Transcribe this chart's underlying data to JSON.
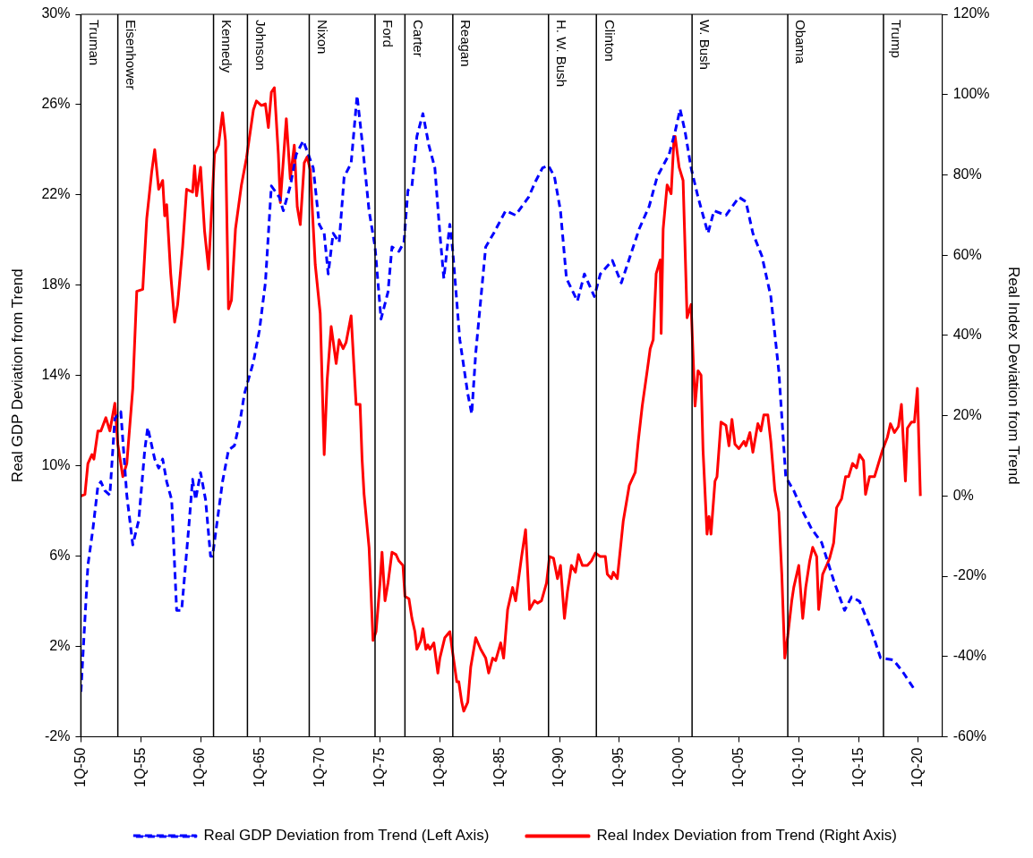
{
  "chart_data": {
    "type": "line",
    "ylabel": "Real GDP Deviation from Trend",
    "y2label": "Real Index Deviation from Trend",
    "xlim": [
      "1950-01",
      "2022-01"
    ],
    "xticks": [
      {
        "value": "1950-01",
        "label": "1Q-50"
      },
      {
        "value": "1955-01",
        "label": "1Q-55"
      },
      {
        "value": "1960-01",
        "label": "1Q-60"
      },
      {
        "value": "1965-01",
        "label": "1Q-65"
      },
      {
        "value": "1970-01",
        "label": "1Q-70"
      },
      {
        "value": "1975-01",
        "label": "1Q-75"
      },
      {
        "value": "1980-01",
        "label": "1Q-80"
      },
      {
        "value": "1985-01",
        "label": "1Q-85"
      },
      {
        "value": "1990-01",
        "label": "1Q-90"
      },
      {
        "value": "1995-01",
        "label": "1Q-95"
      },
      {
        "value": "2000-01",
        "label": "1Q-00"
      },
      {
        "value": "2005-01",
        "label": "1Q-05"
      },
      {
        "value": "2010-01",
        "label": "1Q-10"
      },
      {
        "value": "2015-01",
        "label": "1Q-15"
      },
      {
        "value": "2020-01",
        "label": "1Q-20"
      }
    ],
    "ylim": [
      -2,
      30
    ],
    "yticks": [
      {
        "value": -2,
        "label": "-2%"
      },
      {
        "value": 2,
        "label": "2%"
      },
      {
        "value": 6,
        "label": "6%"
      },
      {
        "value": 10,
        "label": "10%"
      },
      {
        "value": 14,
        "label": "14%"
      },
      {
        "value": 18,
        "label": "18%"
      },
      {
        "value": 22,
        "label": "22%"
      },
      {
        "value": 26,
        "label": "26%"
      },
      {
        "value": 30,
        "label": "30%"
      }
    ],
    "y2lim": [
      -60,
      120
    ],
    "y2ticks": [
      {
        "value": -60,
        "label": "-60%"
      },
      {
        "value": -40,
        "label": "-40%"
      },
      {
        "value": -20,
        "label": "-20%"
      },
      {
        "value": 0,
        "label": "0%"
      },
      {
        "value": 20,
        "label": "20%"
      },
      {
        "value": 40,
        "label": "40%"
      },
      {
        "value": 60,
        "label": "60%"
      },
      {
        "value": 80,
        "label": "80%"
      },
      {
        "value": 100,
        "label": "100%"
      },
      {
        "value": 120,
        "label": "120%"
      }
    ],
    "grid": false,
    "legend": "bottom",
    "ref_lines": [
      {
        "axis": "x",
        "value": "1950-01",
        "label": "Truman",
        "color": "#000000"
      },
      {
        "axis": "x",
        "value": "1953-02",
        "label": "Eisenhower",
        "color": "#000000"
      },
      {
        "axis": "x",
        "value": "1961-02",
        "label": "Kennedy",
        "color": "#000000"
      },
      {
        "axis": "x",
        "value": "1963-12",
        "label": "Johnson",
        "color": "#000000"
      },
      {
        "axis": "x",
        "value": "1969-02",
        "label": "Nixon",
        "color": "#000000"
      },
      {
        "axis": "x",
        "value": "1974-08",
        "label": "Ford",
        "color": "#000000"
      },
      {
        "axis": "x",
        "value": "1977-02",
        "label": "Carter",
        "color": "#000000"
      },
      {
        "axis": "x",
        "value": "1981-02",
        "label": "Reagan",
        "color": "#000000"
      },
      {
        "axis": "x",
        "value": "1989-02",
        "label": "H. W. Bush",
        "color": "#000000"
      },
      {
        "axis": "x",
        "value": "1993-02",
        "label": "Clinton",
        "color": "#000000"
      },
      {
        "axis": "x",
        "value": "2001-02",
        "label": "W. Bush",
        "color": "#000000"
      },
      {
        "axis": "x",
        "value": "2009-02",
        "label": "Obama",
        "color": "#000000"
      },
      {
        "axis": "x",
        "value": "2017-02",
        "label": "Trump",
        "color": "#000000"
      }
    ],
    "series": [
      {
        "name": "Real GDP Deviation from Trend (Left Axis)",
        "color": "#0000ff",
        "line_style": "dashed",
        "axis": "y",
        "x": [
          "1950-01",
          "1950-08",
          "1951-01",
          "1951-06",
          "1951-09",
          "1952-01",
          "1952-06",
          "1952-11",
          "1953-05",
          "1953-11",
          "1954-05",
          "1954-11",
          "1955-05",
          "1955-08",
          "1956-03",
          "1956-07",
          "1956-11",
          "1957-03",
          "1957-08",
          "1958-01",
          "1958-06",
          "1959-01",
          "1959-05",
          "1959-08",
          "1960-01",
          "1960-06",
          "1960-11",
          "1961-01",
          "1961-11",
          "1962-05",
          "1962-11",
          "1963-05",
          "1963-09",
          "1964-06",
          "1964-12",
          "1965-06",
          "1965-12",
          "1966-08",
          "1966-12",
          "1967-07",
          "1968-01",
          "1968-08",
          "1969-01",
          "1969-06",
          "1969-12",
          "1970-05",
          "1970-09",
          "1971-02",
          "1971-08",
          "1972-01",
          "1972-08",
          "1973-02",
          "1973-07",
          "1974-02",
          "1974-08",
          "1975-02",
          "1975-09",
          "1976-01",
          "1976-08",
          "1977-01",
          "1977-05",
          "1977-09",
          "1978-02",
          "1978-08",
          "1979-02",
          "1979-08",
          "1980-01",
          "1980-05",
          "1980-11",
          "1981-02",
          "1981-09",
          "1982-05",
          "1982-09",
          "1983-01",
          "1983-11",
          "1984-07",
          "1985-07",
          "1986-05",
          "1987-06",
          "1988-01",
          "1988-08",
          "1989-02",
          "1989-08",
          "1990-02",
          "1990-08",
          "1991-07",
          "1992-02",
          "1992-12",
          "1993-06",
          "1994-06",
          "1995-03",
          "1995-12",
          "1996-09",
          "1997-07",
          "1998-03",
          "1999-03",
          "1999-09",
          "2000-02",
          "2000-07",
          "2001-01",
          "2001-08",
          "2002-06",
          "2002-12",
          "2003-12",
          "2005-01",
          "2005-08",
          "2006-03",
          "2006-12",
          "2007-09",
          "2008-05",
          "2008-12",
          "2009-08",
          "2010-06",
          "2011-02",
          "2011-12",
          "2013-01",
          "2013-11",
          "2014-06",
          "2015-02",
          "2016-02",
          "2016-11",
          "2017-12",
          "2018-09",
          "2019-09"
        ],
        "values": [
          0.0,
          5.6,
          7.2,
          9.1,
          9.3,
          8.9,
          8.7,
          12.1,
          12.4,
          8.7,
          6.5,
          7.6,
          10.7,
          11.7,
          10.3,
          9.9,
          10.3,
          9.3,
          8.5,
          3.6,
          3.6,
          7.2,
          9.4,
          8.5,
          9.7,
          8.5,
          6.0,
          6.0,
          9.3,
          10.7,
          10.9,
          12.1,
          13.2,
          14.6,
          16.0,
          18.1,
          22.4,
          21.9,
          21.3,
          22.4,
          23.8,
          24.4,
          23.8,
          23.2,
          20.7,
          20.3,
          18.5,
          20.3,
          19.9,
          22.8,
          23.4,
          26.4,
          24.4,
          21.3,
          19.7,
          16.5,
          17.7,
          19.7,
          19.5,
          19.9,
          22.2,
          22.4,
          24.6,
          25.6,
          24.2,
          23.2,
          20.3,
          18.3,
          20.7,
          19.5,
          15.6,
          13.2,
          12.3,
          15.0,
          19.7,
          20.3,
          21.3,
          21.1,
          21.9,
          22.6,
          23.2,
          23.3,
          22.8,
          21.3,
          18.3,
          17.3,
          18.5,
          17.5,
          18.5,
          19.1,
          18.1,
          19.3,
          20.5,
          21.5,
          22.8,
          23.8,
          24.8,
          25.8,
          24.8,
          23.2,
          21.9,
          20.3,
          21.3,
          21.1,
          21.9,
          21.7,
          20.3,
          19.3,
          17.5,
          14.2,
          9.5,
          8.9,
          7.9,
          7.2,
          6.6,
          4.8,
          3.6,
          4.2,
          4.0,
          2.7,
          1.5,
          1.4,
          0.9,
          0.1
        ]
      },
      {
        "name": "Real Index Deviation from Trend (Right Axis)",
        "color": "#ff0000",
        "line_style": "solid",
        "axis": "y2",
        "x": [
          "1950-01",
          "1950-05",
          "1950-08",
          "1950-12",
          "1951-02",
          "1951-06",
          "1951-09",
          "1952-02",
          "1952-06",
          "1952-11",
          "1953-02",
          "1953-07",
          "1953-11",
          "1954-05",
          "1954-09",
          "1955-03",
          "1955-07",
          "1955-12",
          "1956-03",
          "1956-07",
          "1956-11",
          "1957-01",
          "1957-03",
          "1957-07",
          "1957-11",
          "1958-02",
          "1958-07",
          "1958-11",
          "1959-05",
          "1959-07",
          "1959-09",
          "1960-01",
          "1960-05",
          "1960-09",
          "1961-03",
          "1961-07",
          "1961-11",
          "1962-02",
          "1962-05",
          "1962-08",
          "1962-12",
          "1963-06",
          "1963-11",
          "1964-06",
          "1964-09",
          "1965-02",
          "1965-06",
          "1965-09",
          "1965-12",
          "1966-03",
          "1966-07",
          "1966-09",
          "1967-03",
          "1967-07",
          "1967-11",
          "1968-02",
          "1968-05",
          "1968-09",
          "1968-12",
          "1969-03",
          "1969-08",
          "1970-01",
          "1970-05",
          "1970-08",
          "1970-12",
          "1971-05",
          "1971-08",
          "1971-12",
          "1972-03",
          "1972-08",
          "1973-01",
          "1973-05",
          "1973-07",
          "1973-09",
          "1974-02",
          "1974-06",
          "1974-09",
          "1975-01",
          "1975-03",
          "1975-06",
          "1975-09",
          "1976-01",
          "1976-05",
          "1976-08",
          "1976-12",
          "1977-02",
          "1977-06",
          "1977-09",
          "1977-12",
          "1978-02",
          "1978-06",
          "1978-08",
          "1978-11",
          "1979-01",
          "1979-03",
          "1979-07",
          "1979-11",
          "1980-01",
          "1980-06",
          "1980-11",
          "1981-02",
          "1981-06",
          "1981-08",
          "1981-11",
          "1982-01",
          "1982-05",
          "1982-08",
          "1983-01",
          "1983-06",
          "1983-11",
          "1984-02",
          "1984-06",
          "1984-09",
          "1985-02",
          "1985-05",
          "1985-09",
          "1986-02",
          "1986-05",
          "1986-11",
          "1987-03",
          "1987-07",
          "1987-12",
          "1988-03",
          "1988-07",
          "1988-12",
          "1989-03",
          "1989-07",
          "1989-11",
          "1990-02",
          "1990-06",
          "1990-09",
          "1991-01",
          "1991-05",
          "1991-08",
          "1991-12",
          "1992-05",
          "1992-09",
          "1993-01",
          "1993-06",
          "1993-11",
          "1994-01",
          "1994-05",
          "1994-07",
          "1994-11",
          "1995-05",
          "1995-11",
          "1996-05",
          "1996-08",
          "1996-12",
          "1997-05",
          "1997-08",
          "1997-11",
          "1998-02",
          "1998-06",
          "1998-07",
          "1998-09",
          "1999-01",
          "1999-05",
          "1999-08",
          "1999-09",
          "2000-01",
          "2000-05",
          "2000-09",
          "2001-01",
          "2001-05",
          "2001-08",
          "2001-11",
          "2002-01",
          "2002-05",
          "2002-07",
          "2002-09",
          "2003-01",
          "2003-03",
          "2003-07",
          "2003-12",
          "2004-03",
          "2004-06",
          "2004-09",
          "2005-01",
          "2005-06",
          "2005-08",
          "2005-12",
          "2006-03",
          "2006-08",
          "2006-11",
          "2007-02",
          "2007-06",
          "2007-09",
          "2008-01",
          "2008-05",
          "2008-08",
          "2008-11",
          "2009-02",
          "2009-06",
          "2009-08",
          "2010-01",
          "2010-05",
          "2010-08",
          "2010-12",
          "2011-03",
          "2011-07",
          "2011-09",
          "2012-01",
          "2012-05",
          "2012-08",
          "2012-12",
          "2013-03",
          "2013-08",
          "2013-12",
          "2014-03",
          "2014-07",
          "2014-11",
          "2015-02",
          "2015-06",
          "2015-08",
          "2015-12",
          "2016-05",
          "2016-09",
          "2017-01",
          "2017-06",
          "2017-09",
          "2018-01",
          "2018-05",
          "2018-08",
          "2018-12",
          "2019-02",
          "2019-06",
          "2019-09",
          "2019-12",
          "2020-03"
        ],
        "values": [
          0,
          0.4,
          8.1,
          10.3,
          9.2,
          16.2,
          16.2,
          19.5,
          16.2,
          23.1,
          12.9,
          4.8,
          8.1,
          26.8,
          51.0,
          51.5,
          69.1,
          80.8,
          86.3,
          76.4,
          78.6,
          69.8,
          72.6,
          55.4,
          43.3,
          47.7,
          62.1,
          76.4,
          75.7,
          82.3,
          74.8,
          81.9,
          66.0,
          56.5,
          85.2,
          87.4,
          95.5,
          88.5,
          46.6,
          48.8,
          66.5,
          77.5,
          84.1,
          96.2,
          98.4,
          97.3,
          97.7,
          91.8,
          100.6,
          101.7,
          85.2,
          73.1,
          94.0,
          79.0,
          87.4,
          72.0,
          67.6,
          83.0,
          84.5,
          81.2,
          57.7,
          45.5,
          10.3,
          29.0,
          42.2,
          33.0,
          38.9,
          36.7,
          38.3,
          44.9,
          22.8,
          22.8,
          9.2,
          0.4,
          -12.8,
          -36.0,
          -33.8,
          -21.7,
          -14.0,
          -26.1,
          -21.7,
          -14.0,
          -14.6,
          -16.2,
          -17.3,
          -25.0,
          -25.6,
          -30.5,
          -33.8,
          -38.2,
          -36.0,
          -33.1,
          -38.2,
          -37.1,
          -38.2,
          -36.6,
          -44.1,
          -40.4,
          -35.3,
          -33.8,
          -39.3,
          -46.3,
          -46.3,
          -51.4,
          -53.6,
          -51.4,
          -42.6,
          -35.3,
          -38.2,
          -40.4,
          -44.1,
          -40.4,
          -41.0,
          -36.6,
          -40.4,
          -28.3,
          -22.8,
          -26.1,
          -15.1,
          -8.4,
          -28.3,
          -26.1,
          -26.7,
          -26.1,
          -21.7,
          -15.1,
          -15.5,
          -20.6,
          -17.3,
          -30.5,
          -23.9,
          -17.3,
          -19.0,
          -14.6,
          -17.3,
          -17.3,
          -16.2,
          -14.2,
          -15.1,
          -15.1,
          -19.5,
          -20.6,
          -19.0,
          -20.6,
          -6.2,
          2.6,
          5.9,
          13.6,
          22.4,
          31.2,
          36.7,
          38.9,
          55.4,
          58.8,
          40.5,
          66.5,
          77.5,
          75.3,
          89.6,
          89.6,
          81.9,
          78.6,
          44.4,
          47.7,
          22.4,
          31.2,
          30.1,
          11.4,
          -9.5,
          -5.1,
          -9.5,
          3.7,
          4.8,
          18.4,
          17.6,
          12.5,
          19.1,
          12.9,
          11.8,
          13.6,
          12.5,
          15.8,
          10.9,
          18.0,
          16.2,
          20.2,
          20.2,
          13.6,
          1.5,
          -4.0,
          -19.5,
          -40.4,
          -34.9,
          -26.1,
          -22.8,
          -17.3,
          -30.5,
          -22.8,
          -16.2,
          -12.8,
          -15.1,
          -28.3,
          -19.5,
          -17.3,
          -15.5,
          -11.7,
          -2.9,
          -0.7,
          4.8,
          4.8,
          8.1,
          7.0,
          10.3,
          8.8,
          0.4,
          4.8,
          4.8,
          8.1,
          11.4,
          14.7,
          18.0,
          15.8,
          17.3,
          22.8,
          3.7,
          16.9,
          18.4,
          18.4,
          26.8,
          0
        ]
      }
    ]
  }
}
